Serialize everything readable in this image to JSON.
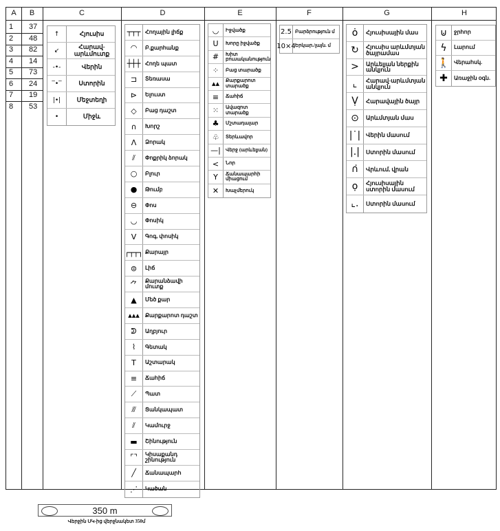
{
  "headers": [
    "A",
    "B",
    "C",
    "D",
    "E",
    "F",
    "G",
    "H"
  ],
  "col_a": [
    "1",
    "2",
    "3",
    "4",
    "5",
    "6",
    "7",
    "8"
  ],
  "col_b": [
    "37",
    "48",
    "82",
    "14",
    "73",
    "24",
    "19",
    "53"
  ],
  "col_c": [
    {
      "icon": "arrow-up-icon",
      "g": "↑",
      "label": "Հյուսիս"
    },
    {
      "icon": "arrow-down-left-icon",
      "g": "↙",
      "label": "Հարավ-արևմուտք"
    },
    {
      "icon": "dot-line-below-icon",
      "g": "-•-",
      "label": "Վերին"
    },
    {
      "icon": "dot-line-above-icon",
      "g": "‾•‾",
      "label": "Ստորին"
    },
    {
      "icon": "dot-between-lines-icon",
      "g": "|•|",
      "label": "Մեջտեղի"
    },
    {
      "icon": "dot-center-icon",
      "g": "•",
      "label": "Միջև"
    }
  ],
  "col_d": [
    {
      "icon": "earth-bank-icon",
      "g": "┬┬┬",
      "label": "Հողային լիճք"
    },
    {
      "icon": "quarry-icon",
      "g": "◠",
      "label": "Բ.քարհանք"
    },
    {
      "icon": "earth-wall-icon",
      "g": "┼┼┼",
      "label": "Հողե պատ"
    },
    {
      "icon": "terrace-icon",
      "g": "⊐",
      "label": "Տեռասա"
    },
    {
      "icon": "spur-icon",
      "g": "⊳",
      "label": "Ելուստ"
    },
    {
      "icon": "diamond-icon",
      "g": "◇",
      "label": "Բաց դաշտ"
    },
    {
      "icon": "niche-icon",
      "g": "∩",
      "label": "Խորշ"
    },
    {
      "icon": "gully-icon",
      "g": "Λ",
      "label": "Ձորակ"
    },
    {
      "icon": "small-gully-icon",
      "g": "⫽",
      "label": "Փոքրիկ ձորակ"
    },
    {
      "icon": "hill-icon",
      "g": "○",
      "label": "Բլուր"
    },
    {
      "icon": "mound-icon",
      "g": "●",
      "label": "Թումբ"
    },
    {
      "icon": "pit-icon",
      "g": "⊖",
      "label": "Փոս"
    },
    {
      "icon": "small-pit-icon",
      "g": "◡",
      "label": "Փոսիկ"
    },
    {
      "icon": "hollow-icon",
      "g": "V",
      "label": "Գոգ, փոսիկ"
    },
    {
      "icon": "cave-icon",
      "g": "┌┬┬┐",
      "label": "Քարայր"
    },
    {
      "icon": "lake-icon",
      "g": "⊜",
      "label": "Լիճ"
    },
    {
      "icon": "cave-entrance-icon",
      "g": "⺈",
      "label": "Քարանձավի մուտք"
    },
    {
      "icon": "big-rock-icon",
      "g": "▲",
      "label": "Մեծ քար"
    },
    {
      "icon": "rocky-field-icon",
      "g": "▴▴▴",
      "label": "Քարքարոտ դաշտ"
    },
    {
      "icon": "spring-icon",
      "g": "ᕲ",
      "label": "Աղբյուր"
    },
    {
      "icon": "stream-icon",
      "g": "⌇",
      "label": "Գետակ"
    },
    {
      "icon": "tower-icon",
      "g": "T",
      "label": "Աշտարակ"
    },
    {
      "icon": "marsh-icon",
      "g": "≡",
      "label": "Ճահիճ"
    },
    {
      "icon": "wall-icon",
      "g": "⟋",
      "label": "Պատ"
    },
    {
      "icon": "fence-icon",
      "g": "⫻",
      "label": "Ցանկապատ"
    },
    {
      "icon": "bridge-icon",
      "g": "⫽",
      "label": "Կամուրջ"
    },
    {
      "icon": "building-icon",
      "g": "▬",
      "label": "Շինություն"
    },
    {
      "icon": "ruin-icon",
      "g": "⌜⌝",
      "label": "Կիսաքանդ շինություն"
    },
    {
      "icon": "road-icon",
      "g": "╱",
      "label": "Ճանապարհ"
    },
    {
      "icon": "path-icon",
      "g": "⋰",
      "label": "Կածան"
    }
  ],
  "col_e": [
    {
      "icon": "depression-icon",
      "g": "◡",
      "label": "Իջվածք"
    },
    {
      "icon": "deep-depression-icon",
      "g": "U",
      "label": "Խորը իջվածք"
    },
    {
      "icon": "dense-vegetation-icon",
      "g": "#",
      "label": "Խիտ բուսականություն"
    },
    {
      "icon": "open-area-icon",
      "g": "⁘",
      "label": "Բաց տարածք"
    },
    {
      "icon": "rocky-area-icon",
      "g": "▴▴",
      "label": "Քարքարոտ տարածք"
    },
    {
      "icon": "marsh-icon",
      "g": "≡",
      "label": "Ճահիճ"
    },
    {
      "icon": "sandy-area-icon",
      "g": "⁙",
      "label": "Ավազոտ տարածք"
    },
    {
      "icon": "conifer-icon",
      "g": "♣",
      "label": "Մշտադալար"
    },
    {
      "icon": "deciduous-icon",
      "g": "♧",
      "label": "Տերևավոր"
    },
    {
      "icon": "line-end-icon",
      "g": "—|",
      "label": "Վերջ (արևելյան)"
    },
    {
      "icon": "bend-icon",
      "g": "<",
      "label": "Նոր"
    },
    {
      "icon": "junction-icon",
      "g": "Y",
      "label": "Ճանապարհի միացում"
    },
    {
      "icon": "crossroad-icon",
      "g": "✕",
      "label": "Խաչմերուկ"
    }
  ],
  "col_f": [
    {
      "icon": "height-value",
      "g": "2.5",
      "label": "Բարձրություն մ"
    },
    {
      "icon": "size-value",
      "g": "10×4",
      "label": "Երկար./լայն. մ"
    }
  ],
  "col_g": [
    {
      "icon": "north-part-icon",
      "g": "ȯ",
      "label": "Հյուսիսային մաս"
    },
    {
      "icon": "northwest-edge-icon",
      "g": "↻",
      "label": "Հյուսիս արևմտյան ծայրամաս"
    },
    {
      "icon": "east-inner-corner-icon",
      "g": ">",
      "label": "Արևելյան ներքին անկյուն"
    },
    {
      "icon": "southwest-corner-icon",
      "g": "⌞",
      "label": "Հարավ-արևմտյան անկյուն"
    },
    {
      "icon": "south-end-icon",
      "g": "Ṿ",
      "label": "Հարավային ծայր"
    },
    {
      "icon": "west-part-icon",
      "g": "⊙",
      "label": "Արևմտյան մաս"
    },
    {
      "icon": "upper-part-icon",
      "g": "|˙|",
      "label": "Վերին մասում"
    },
    {
      "icon": "lower-part-icon",
      "g": "|.|",
      "label": "Ստորին մասում"
    },
    {
      "icon": "on-top-icon",
      "g": "∩̇",
      "label": "Վրևում, վրան"
    },
    {
      "icon": "north-lower-part-icon",
      "g": "ọ",
      "label": "Հյուսիսային ստորին մասում"
    },
    {
      "icon": "lower-corner-icon",
      "g": "⌞.",
      "label": "Ստորին մասում"
    }
  ],
  "col_h": [
    {
      "icon": "well-icon",
      "g": "⊍",
      "label": "ջրհոր"
    },
    {
      "icon": "power-line-icon",
      "g": "ϟ",
      "label": "Լարում"
    },
    {
      "icon": "person-icon",
      "g": "🚶",
      "label": "Վերահսկ."
    },
    {
      "icon": "first-aid-icon",
      "g": "✚",
      "label": "Առաջին օգն."
    }
  ],
  "scale": {
    "text": "350 m",
    "caption": "Վերջին ՍԿ-ից վերջնակետ 350մ"
  }
}
